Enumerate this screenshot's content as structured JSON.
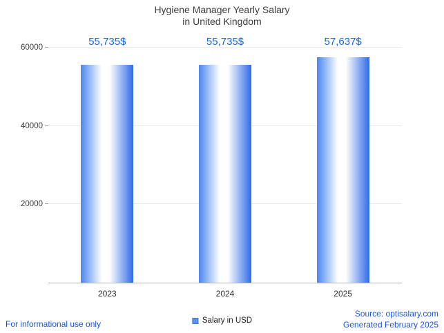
{
  "title": {
    "line1": "Hygiene Manager Yearly Salary",
    "line2": "in United Kingdom"
  },
  "chart_data": {
    "type": "bar",
    "title": "Hygiene Manager Yearly Salary in United Kingdom",
    "categories": [
      "2023",
      "2024",
      "2025"
    ],
    "values": [
      55735,
      55735,
      57637
    ],
    "value_labels": [
      "55,735$",
      "55,735$",
      "57,637$"
    ],
    "xlabel": "",
    "ylabel": "",
    "ylim": [
      0,
      62000
    ],
    "yticks": [
      20000,
      40000,
      60000
    ],
    "grid": true,
    "legend_position": "bottom",
    "legend": [
      {
        "label": "Salary in USD",
        "color": "#5b8ff9"
      }
    ],
    "bar_gradient": [
      "#4a87ef",
      "#ffffff",
      "#2e6ce8"
    ]
  },
  "footer": {
    "left": "For informational use only",
    "source": "Source: optisalary.com",
    "generated": "Generated February 2025"
  },
  "colors": {
    "value_label": "#1565e0",
    "footer_link": "#1a56db",
    "title": "#3d3d3d",
    "grid": "#e8e8e8",
    "axis": "#b0b0b0"
  }
}
